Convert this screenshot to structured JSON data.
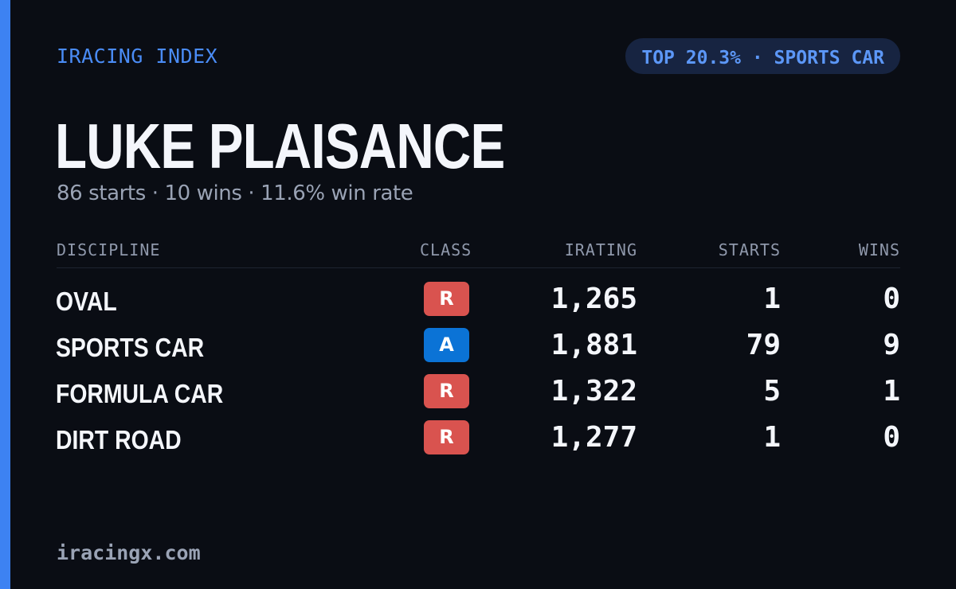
{
  "brand": "IRACING INDEX",
  "rank_badge": "TOP 20.3% · SPORTS CAR",
  "driver": {
    "name": "LUKE PLAISANCE",
    "summary": "86 starts · 10 wins · 11.6% win rate"
  },
  "table": {
    "headers": {
      "discipline": "DISCIPLINE",
      "class": "CLASS",
      "irating": "IRATING",
      "starts": "STARTS",
      "wins": "WINS"
    },
    "rows": [
      {
        "discipline": "OVAL",
        "class": "R",
        "class_color": "#d9534f",
        "irating": "1,265",
        "starts": "1",
        "wins": "0"
      },
      {
        "discipline": "SPORTS CAR",
        "class": "A",
        "class_color": "#0b73d6",
        "irating": "1,881",
        "starts": "79",
        "wins": "9"
      },
      {
        "discipline": "FORMULA CAR",
        "class": "R",
        "class_color": "#d9534f",
        "irating": "1,322",
        "starts": "5",
        "wins": "1"
      },
      {
        "discipline": "DIRT ROAD",
        "class": "R",
        "class_color": "#d9534f",
        "irating": "1,277",
        "starts": "1",
        "wins": "0"
      }
    ]
  },
  "footer": "iracingx.com",
  "colors": {
    "accent": "#3d82f2",
    "background": "#0a0d14",
    "pill_bg": "#172441"
  }
}
